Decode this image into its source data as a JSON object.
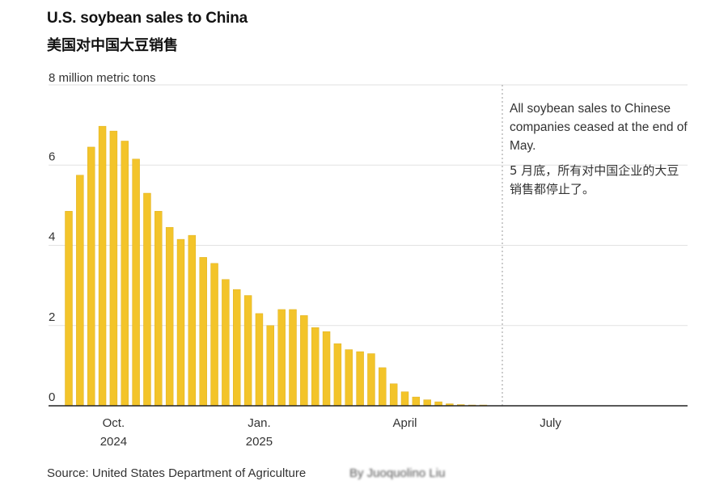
{
  "title": "U.S. soybean sales to China",
  "subtitle": "美国对中国大豆销售",
  "source": "Source: United States Department of Agriculture",
  "byline": "By Juoquolino Liu",
  "annotation": {
    "text_en": "All soybean sales to Chinese companies ceased at the end of May.",
    "text_zh": "5 月底，所有对中国企业的大豆销售都停止了。"
  },
  "colors": {
    "bar": "#f3c42a",
    "bar_edge": "#d9a80f",
    "axis": "#222222",
    "grid": "#e2e2e2"
  },
  "chart_data": {
    "type": "bar",
    "title": "U.S. soybean sales to China",
    "subtitle": "美国对中国大豆销售",
    "ylabel": "million metric tons",
    "ylim": [
      0,
      8
    ],
    "yticks": [
      {
        "value": 0,
        "label": "0"
      },
      {
        "value": 2,
        "label": "2"
      },
      {
        "value": 4,
        "label": "4"
      },
      {
        "value": 6,
        "label": "6"
      },
      {
        "value": 8,
        "label": "8 million metric tons"
      }
    ],
    "xticks": [
      {
        "week_index": 4,
        "label": "Oct.",
        "label2": "2024"
      },
      {
        "week_index": 17,
        "label": "Jan.",
        "label2": "2025"
      },
      {
        "week_index": 30,
        "label": "April",
        "label2": ""
      },
      {
        "week_index": 43,
        "label": "July",
        "label2": ""
      }
    ],
    "total_weeks": 56,
    "grid": true,
    "marker_week_index": 38.7,
    "values": [
      4.85,
      5.75,
      6.45,
      6.97,
      6.85,
      6.6,
      6.15,
      5.3,
      4.85,
      4.45,
      4.15,
      4.25,
      3.7,
      3.55,
      3.15,
      2.9,
      2.75,
      2.3,
      2.0,
      2.4,
      2.4,
      2.25,
      1.95,
      1.85,
      1.55,
      1.4,
      1.35,
      1.3,
      0.95,
      0.55,
      0.35,
      0.22,
      0.15,
      0.1,
      0.05,
      0.03,
      0.02,
      0.02
    ]
  }
}
